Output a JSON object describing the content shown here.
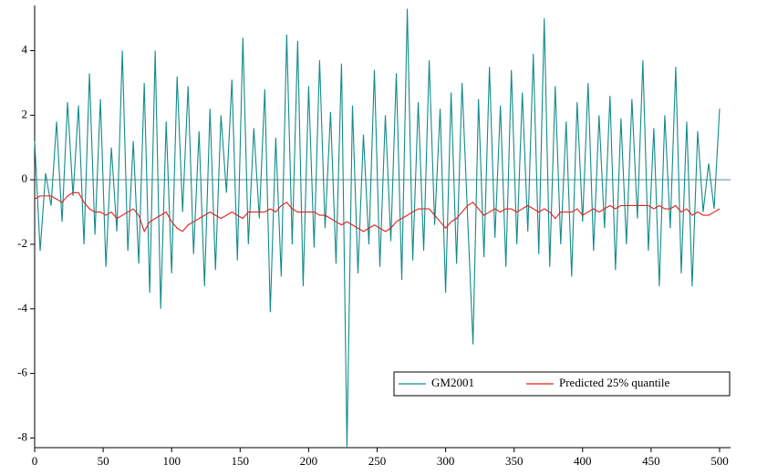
{
  "chart_data": {
    "type": "line",
    "x": [
      0,
      4,
      8,
      12,
      16,
      20,
      24,
      28,
      32,
      36,
      40,
      44,
      48,
      52,
      56,
      60,
      64,
      68,
      72,
      76,
      80,
      84,
      88,
      92,
      96,
      100,
      104,
      108,
      112,
      116,
      120,
      124,
      128,
      132,
      136,
      140,
      144,
      148,
      152,
      156,
      160,
      164,
      168,
      172,
      176,
      180,
      184,
      188,
      192,
      196,
      200,
      204,
      208,
      212,
      216,
      220,
      224,
      228,
      232,
      236,
      240,
      244,
      248,
      252,
      256,
      260,
      264,
      268,
      272,
      276,
      280,
      284,
      288,
      292,
      296,
      300,
      304,
      308,
      312,
      316,
      320,
      324,
      328,
      332,
      336,
      340,
      344,
      348,
      352,
      356,
      360,
      364,
      368,
      372,
      376,
      380,
      384,
      388,
      392,
      396,
      400,
      404,
      408,
      412,
      416,
      420,
      424,
      428,
      432,
      436,
      440,
      444,
      448,
      452,
      456,
      460,
      464,
      468,
      472,
      476,
      480,
      484,
      488,
      492,
      496,
      500
    ],
    "series": [
      {
        "name": "GM2001",
        "color": "#138a8a",
        "values": [
          1.2,
          -2.2,
          0.2,
          -0.8,
          1.8,
          -1.3,
          2.4,
          -0.5,
          2.3,
          -2.0,
          3.3,
          -1.7,
          2.5,
          -2.7,
          1.0,
          -1.6,
          4.0,
          -2.2,
          1.2,
          -2.6,
          3.0,
          -3.5,
          4.0,
          -4.0,
          1.8,
          -2.9,
          3.2,
          -1.0,
          2.9,
          -2.3,
          1.5,
          -3.3,
          2.2,
          -2.8,
          2.0,
          -0.4,
          3.1,
          -2.5,
          4.4,
          -2.0,
          1.6,
          -1.2,
          2.8,
          -4.1,
          1.3,
          -3.0,
          4.5,
          -2.0,
          4.3,
          -3.3,
          2.9,
          -2.1,
          3.7,
          -1.5,
          2.1,
          -2.6,
          3.6,
          -8.3,
          2.3,
          -2.9,
          1.4,
          -2.0,
          3.4,
          -2.7,
          2.0,
          -1.9,
          3.3,
          -3.1,
          5.3,
          -2.5,
          2.4,
          -2.2,
          3.7,
          -1.4,
          2.2,
          -3.5,
          2.7,
          -2.6,
          3.0,
          -1.1,
          -5.1,
          2.5,
          -2.4,
          3.5,
          -1.8,
          2.3,
          -2.7,
          3.4,
          -2.0,
          2.7,
          -1.6,
          3.9,
          -2.3,
          5.0,
          -2.7,
          2.9,
          -2.0,
          1.8,
          -3.0,
          2.4,
          -1.3,
          3.0,
          -2.2,
          2.0,
          -1.5,
          2.6,
          -2.8,
          1.9,
          -2.0,
          2.5,
          -1.2,
          3.7,
          -2.2,
          1.6,
          -3.3,
          2.0,
          -1.5,
          3.5,
          -2.9,
          1.8,
          -3.3,
          1.5,
          -1.0,
          0.5,
          -0.9,
          2.2
        ]
      },
      {
        "name": "Predicted 25% quantile",
        "color": "#e0201b",
        "values": [
          -0.6,
          -0.5,
          -0.5,
          -0.5,
          -0.6,
          -0.7,
          -0.5,
          -0.4,
          -0.4,
          -0.7,
          -0.9,
          -1.0,
          -1.0,
          -1.1,
          -1.0,
          -1.2,
          -1.1,
          -1.0,
          -0.9,
          -1.1,
          -1.6,
          -1.3,
          -1.2,
          -1.1,
          -1.0,
          -1.3,
          -1.5,
          -1.6,
          -1.4,
          -1.3,
          -1.2,
          -1.1,
          -1.0,
          -1.1,
          -1.2,
          -1.1,
          -1.0,
          -1.1,
          -1.2,
          -1.0,
          -1.0,
          -1.0,
          -1.0,
          -0.9,
          -1.0,
          -0.8,
          -0.7,
          -0.9,
          -1.0,
          -1.0,
          -1.0,
          -1.0,
          -1.1,
          -1.1,
          -1.2,
          -1.3,
          -1.4,
          -1.3,
          -1.4,
          -1.5,
          -1.6,
          -1.5,
          -1.4,
          -1.5,
          -1.6,
          -1.5,
          -1.3,
          -1.2,
          -1.1,
          -1.0,
          -0.9,
          -0.9,
          -0.9,
          -1.1,
          -1.3,
          -1.5,
          -1.3,
          -1.2,
          -1.0,
          -0.8,
          -0.7,
          -0.9,
          -1.1,
          -1.0,
          -0.9,
          -1.0,
          -0.9,
          -0.9,
          -1.0,
          -0.9,
          -0.8,
          -0.9,
          -1.0,
          -0.9,
          -1.0,
          -1.2,
          -1.0,
          -1.0,
          -1.0,
          -0.9,
          -1.1,
          -1.0,
          -0.9,
          -1.0,
          -0.9,
          -0.8,
          -0.9,
          -0.8,
          -0.8,
          -0.8,
          -0.8,
          -0.8,
          -0.8,
          -0.9,
          -0.8,
          -0.9,
          -0.9,
          -0.8,
          -1.0,
          -0.9,
          -1.1,
          -1.0,
          -1.1,
          -1.1,
          -1.0,
          -0.9
        ]
      }
    ],
    "xlim": [
      0,
      508
    ],
    "ylim": [
      -8.3,
      5.4
    ],
    "xticks": [
      0,
      50,
      100,
      150,
      200,
      250,
      300,
      350,
      400,
      450,
      500
    ],
    "yticks": [
      -8,
      -6,
      -4,
      -2,
      0,
      2,
      4
    ],
    "legend": "bottom-right"
  }
}
